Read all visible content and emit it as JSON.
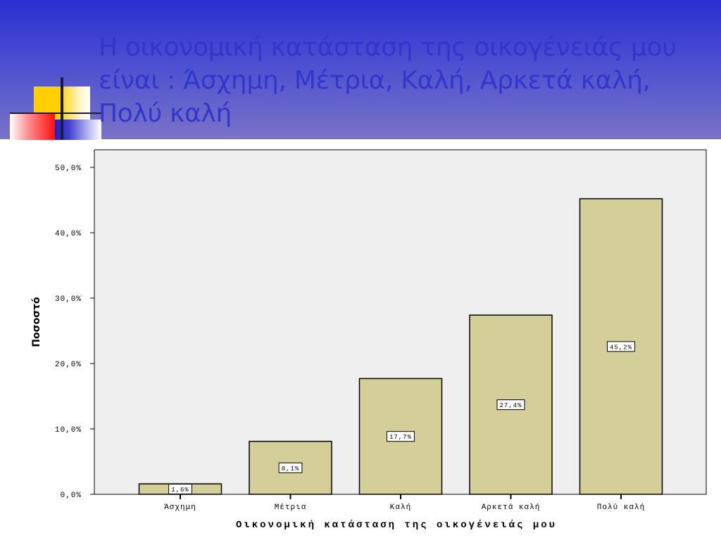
{
  "slide": {
    "title": "Η οικονομική κατάσταση της οικογένειάς μου\nείναι : Άσχημη, Μέτρια, Καλή, Αρκετά καλή,\nΠολύ καλή"
  },
  "colors": {
    "header_top": "#2a2fd2",
    "header_bottom": "#7a73c8",
    "title": "#3336cc",
    "plot_background": "#efefef",
    "bar_fill": "#d4cf98",
    "bar_stroke": "#000000"
  },
  "chart_data": {
    "type": "bar",
    "categories": [
      "Άσχημη",
      "Μέτρια",
      "Καλή",
      "Αρκετά καλή",
      "Πολύ καλή"
    ],
    "values": [
      1.6,
      8.1,
      17.7,
      27.4,
      45.2
    ],
    "data_labels": [
      "1,6%",
      "8,1%",
      "17,7%",
      "27,4%",
      "45,2%"
    ],
    "ylim": [
      0,
      50
    ],
    "yticks": [
      0,
      10,
      20,
      30,
      40,
      50
    ],
    "ytick_labels": [
      "0,0%",
      "10,0%",
      "20,0%",
      "30,0%",
      "40,0%",
      "50,0%"
    ],
    "xlabel": "Οικονομική κατάσταση της οικογένειάς μου",
    "ylabel": "Ποσοστό",
    "grid": false
  }
}
